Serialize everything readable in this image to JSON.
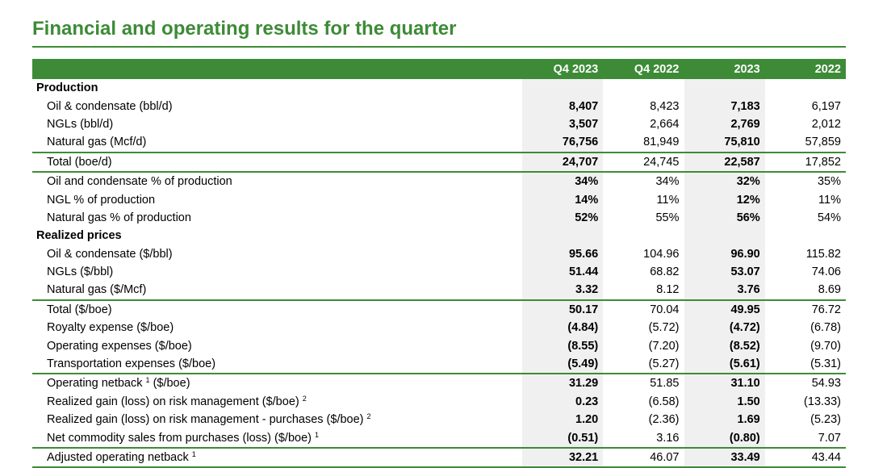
{
  "title": "Financial and operating results for the quarter",
  "columns": [
    "Q4 2023",
    "Q4 2022",
    "2023",
    "2022"
  ],
  "rows": [
    {
      "type": "section",
      "label": "Production",
      "values": [
        "",
        "",
        "",
        ""
      ]
    },
    {
      "type": "row",
      "label": "Oil & condensate (bbl/d)",
      "values": [
        "8,407",
        "8,423",
        "7,183",
        "6,197"
      ]
    },
    {
      "type": "row",
      "label": "NGLs (bbl/d)",
      "values": [
        "3,507",
        "2,664",
        "2,769",
        "2,012"
      ]
    },
    {
      "type": "row",
      "label": "Natural gas (Mcf/d)",
      "values": [
        "76,756",
        "81,949",
        "75,810",
        "57,859"
      ]
    },
    {
      "type": "row",
      "rule": true,
      "label": "Total (boe/d)",
      "values": [
        "24,707",
        "24,745",
        "22,587",
        "17,852"
      ]
    },
    {
      "type": "row",
      "rule": true,
      "label": "Oil and condensate % of production",
      "values": [
        "34%",
        "34%",
        "32%",
        "35%"
      ]
    },
    {
      "type": "row",
      "label": "NGL % of production",
      "values": [
        "14%",
        "11%",
        "12%",
        "11%"
      ]
    },
    {
      "type": "row",
      "label": "Natural gas % of production",
      "values": [
        "52%",
        "55%",
        "56%",
        "54%"
      ]
    },
    {
      "type": "section",
      "label": "Realized prices",
      "values": [
        "",
        "",
        "",
        ""
      ]
    },
    {
      "type": "row",
      "label": "Oil & condensate ($/bbl)",
      "values": [
        "95.66",
        "104.96",
        "96.90",
        "115.82"
      ]
    },
    {
      "type": "row",
      "label": "NGLs ($/bbl)",
      "values": [
        "51.44",
        "68.82",
        "53.07",
        "74.06"
      ]
    },
    {
      "type": "row",
      "label": "Natural gas ($/Mcf)",
      "values": [
        "3.32",
        "8.12",
        "3.76",
        "8.69"
      ]
    },
    {
      "type": "row",
      "rule": true,
      "label": "Total ($/boe)",
      "values": [
        "50.17",
        "70.04",
        "49.95",
        "76.72"
      ]
    },
    {
      "type": "row",
      "label": "Royalty expense ($/boe)",
      "values": [
        "(4.84)",
        "(5.72)",
        "(4.72)",
        "(6.78)"
      ]
    },
    {
      "type": "row",
      "label": "Operating expenses ($/boe)",
      "values": [
        "(8.55)",
        "(7.20)",
        "(8.52)",
        "(9.70)"
      ]
    },
    {
      "type": "row",
      "label": "Transportation expenses ($/boe)",
      "values": [
        "(5.49)",
        "(5.27)",
        "(5.61)",
        "(5.31)"
      ]
    },
    {
      "type": "row",
      "rule": true,
      "label": "Operating netback",
      "note": "1",
      "suffix": " ($/boe)",
      "values": [
        "31.29",
        "51.85",
        "31.10",
        "54.93"
      ]
    },
    {
      "type": "row",
      "label": "Realized gain (loss) on risk management ($/boe)",
      "note": "2",
      "suffix": "",
      "values": [
        "0.23",
        "(6.58)",
        "1.50",
        "(13.33)"
      ]
    },
    {
      "type": "row",
      "label": "Realized gain (loss) on risk management - purchases ($/boe)",
      "note": "2",
      "suffix": "",
      "values": [
        "1.20",
        "(2.36)",
        "1.69",
        "(5.23)"
      ]
    },
    {
      "type": "row",
      "label": "Net commodity sales from purchases (loss) ($/boe)",
      "note": "1",
      "suffix": "",
      "values": [
        "(0.51)",
        "3.16",
        "(0.80)",
        "7.07"
      ]
    },
    {
      "type": "row",
      "rule": true,
      "last": true,
      "label": "Adjusted operating netback",
      "note": "1",
      "suffix": "",
      "values": [
        "32.21",
        "46.07",
        "33.49",
        "43.44"
      ]
    }
  ]
}
